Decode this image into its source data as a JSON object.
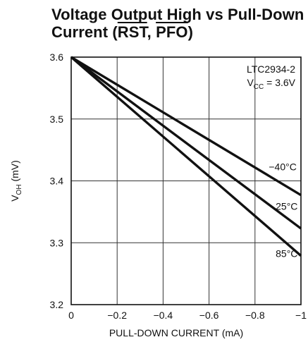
{
  "chart_data": {
    "type": "line",
    "title": "Voltage Output High vs Pull-Down Current (RST, PFO)",
    "title_parts": {
      "line1": "Voltage Output High vs Pull-Down",
      "line2_prefix": "Current (",
      "rst": "RST",
      "separator": ", ",
      "pfo": "PFO",
      "line2_suffix": ")"
    },
    "xlabel": "PULL-DOWN CURRENT (mA)",
    "ylabel": {
      "main": "V",
      "sub": "OH",
      "unit": " (mV)"
    },
    "xlim": [
      0,
      -1
    ],
    "ylim": [
      3.2,
      3.6
    ],
    "x_ticks": [
      0,
      -0.2,
      -0.4,
      -0.6,
      -0.8,
      -1
    ],
    "x_tick_labels": [
      "0",
      "−0.2",
      "−0.4",
      "−0.6",
      "−0.8",
      "−1"
    ],
    "y_ticks": [
      3.2,
      3.3,
      3.4,
      3.5,
      3.6
    ],
    "y_tick_labels": [
      "3.2",
      "3.3",
      "3.4",
      "3.5",
      "3.6"
    ],
    "grid": true,
    "annotation": {
      "device": "LTC2934-2",
      "vcc_main": "V",
      "vcc_sub": "CC",
      "vcc_value": " = 3.6V"
    },
    "series": [
      {
        "name": "−40°C",
        "x": [
          0,
          -1
        ],
        "y": [
          3.6,
          3.377
        ]
      },
      {
        "name": "25°C",
        "x": [
          0,
          -1
        ],
        "y": [
          3.6,
          3.323
        ]
      },
      {
        "name": "85°C",
        "x": [
          0,
          -1
        ],
        "y": [
          3.6,
          3.279
        ]
      }
    ],
    "series_label_positions": {
      "−40°C": {
        "x": -0.86,
        "y": 3.417
      },
      "25°C": {
        "x": -0.89,
        "y": 3.353
      },
      "85°C": {
        "x": -0.89,
        "y": 3.277
      }
    }
  }
}
